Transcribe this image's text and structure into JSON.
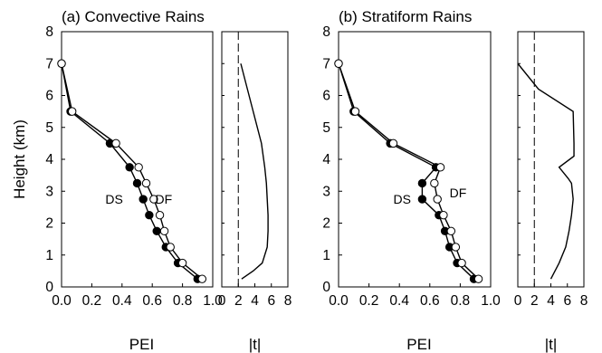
{
  "chart_data": [
    {
      "type": "line",
      "title": "(a) Convective Rains",
      "xlabel": "PEI",
      "ylabel": "Height (km)",
      "xlim": [
        0,
        1.0
      ],
      "ylim": [
        0,
        8
      ],
      "xticks": [
        "0.0",
        "0.2",
        "0.4",
        "0.6",
        "0.8",
        "1.0"
      ],
      "yticks": [
        "0",
        "1",
        "2",
        "3",
        "4",
        "5",
        "6",
        "7",
        "8"
      ],
      "annotations": [
        "DS",
        "DF"
      ],
      "series": [
        {
          "name": "DS",
          "marker": "filled-circle",
          "points": [
            [
              0.0,
              7.0
            ],
            [
              0.06,
              5.5
            ],
            [
              0.32,
              4.5
            ],
            [
              0.45,
              3.75
            ],
            [
              0.5,
              3.25
            ],
            [
              0.54,
              2.75
            ],
            [
              0.58,
              2.25
            ],
            [
              0.63,
              1.75
            ],
            [
              0.69,
              1.25
            ],
            [
              0.77,
              0.75
            ],
            [
              0.9,
              0.25
            ]
          ]
        },
        {
          "name": "DF",
          "marker": "open-circle",
          "points": [
            [
              0.0,
              7.0
            ],
            [
              0.07,
              5.5
            ],
            [
              0.36,
              4.5
            ],
            [
              0.51,
              3.75
            ],
            [
              0.56,
              3.25
            ],
            [
              0.61,
              2.75
            ],
            [
              0.65,
              2.25
            ],
            [
              0.68,
              1.75
            ],
            [
              0.72,
              1.25
            ],
            [
              0.8,
              0.75
            ],
            [
              0.93,
              0.25
            ]
          ]
        }
      ]
    },
    {
      "type": "line",
      "title": "",
      "xlabel": "|t|",
      "ylabel": "",
      "xlim": [
        0,
        8
      ],
      "ylim": [
        0,
        8
      ],
      "xticks": [
        "0",
        "2",
        "4",
        "6",
        "8"
      ],
      "reference_line": {
        "x": 2,
        "style": "dashed"
      },
      "series": [
        {
          "points": [
            [
              2.3,
              7.0
            ],
            [
              3.8,
              5.5
            ],
            [
              4.8,
              4.5
            ],
            [
              5.2,
              3.75
            ],
            [
              5.4,
              3.25
            ],
            [
              5.5,
              2.75
            ],
            [
              5.6,
              2.25
            ],
            [
              5.6,
              1.75
            ],
            [
              5.5,
              1.25
            ],
            [
              4.9,
              0.75
            ],
            [
              3.8,
              0.5
            ],
            [
              2.4,
              0.25
            ]
          ]
        }
      ]
    },
    {
      "type": "line",
      "title": "(b) Stratiform Rains",
      "xlabel": "PEI",
      "ylabel": "",
      "xlim": [
        0,
        1.0
      ],
      "ylim": [
        0,
        8
      ],
      "xticks": [
        "0.0",
        "0.2",
        "0.4",
        "0.6",
        "0.8",
        "1.0"
      ],
      "yticks": [
        "0",
        "1",
        "2",
        "3",
        "4",
        "5",
        "6",
        "7",
        "8"
      ],
      "annotations": [
        "DS",
        "DF"
      ],
      "series": [
        {
          "name": "DS",
          "marker": "filled-circle",
          "points": [
            [
              0.0,
              7.0
            ],
            [
              0.1,
              5.5
            ],
            [
              0.34,
              4.5
            ],
            [
              0.64,
              3.75
            ],
            [
              0.55,
              3.25
            ],
            [
              0.55,
              2.75
            ],
            [
              0.66,
              2.25
            ],
            [
              0.7,
              1.75
            ],
            [
              0.73,
              1.25
            ],
            [
              0.78,
              0.75
            ],
            [
              0.89,
              0.25
            ]
          ]
        },
        {
          "name": "DF",
          "marker": "open-circle",
          "points": [
            [
              0.0,
              7.0
            ],
            [
              0.11,
              5.5
            ],
            [
              0.36,
              4.5
            ],
            [
              0.67,
              3.75
            ],
            [
              0.63,
              3.25
            ],
            [
              0.65,
              2.75
            ],
            [
              0.69,
              2.25
            ],
            [
              0.74,
              1.75
            ],
            [
              0.77,
              1.25
            ],
            [
              0.81,
              0.75
            ],
            [
              0.92,
              0.25
            ]
          ]
        }
      ]
    },
    {
      "type": "line",
      "title": "",
      "xlabel": "|t|",
      "ylabel": "",
      "xlim": [
        0,
        8
      ],
      "ylim": [
        0,
        8
      ],
      "xticks": [
        "0",
        "2",
        "4",
        "6",
        "8"
      ],
      "reference_line": {
        "x": 2,
        "style": "dashed"
      },
      "series": [
        {
          "points": [
            [
              0.0,
              7.0
            ],
            [
              2.5,
              6.2
            ],
            [
              6.7,
              5.5
            ],
            [
              6.8,
              4.5
            ],
            [
              6.8,
              4.1
            ],
            [
              5.0,
              3.75
            ],
            [
              6.1,
              3.4
            ],
            [
              6.5,
              3.25
            ],
            [
              6.7,
              2.75
            ],
            [
              6.5,
              2.25
            ],
            [
              6.2,
              1.75
            ],
            [
              5.8,
              1.25
            ],
            [
              5.0,
              0.75
            ],
            [
              4.0,
              0.25
            ]
          ]
        }
      ]
    }
  ]
}
